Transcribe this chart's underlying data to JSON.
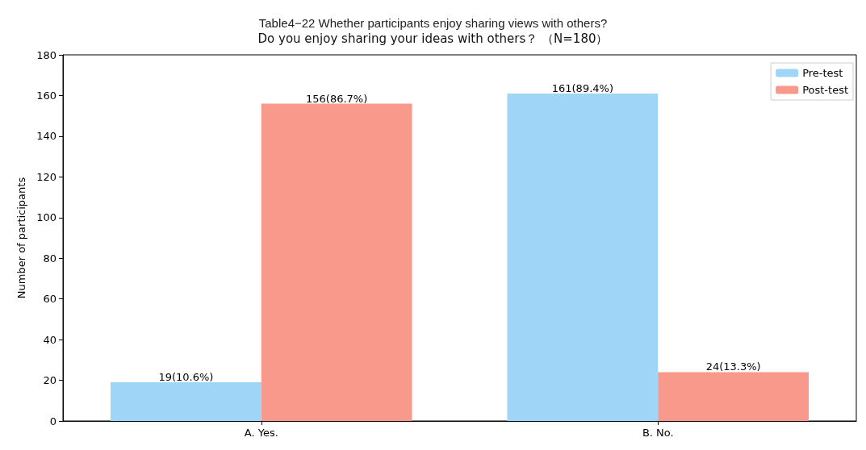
{
  "chart_data": {
    "type": "bar",
    "title": "Table4−22 Whether participants enjoy sharing views with others?",
    "subtitle": "Do you enjoy sharing your ideas with others？ （N=180）",
    "ylabel": "Number of participants",
    "categories": [
      "A. Yes.",
      "B. No."
    ],
    "series": [
      {
        "name": "Pre-test",
        "color": "#9fd6f8",
        "values": [
          19,
          161
        ],
        "value_labels": [
          "19(10.6%)",
          "161(89.4%)"
        ]
      },
      {
        "name": "Post-test",
        "color": "#f8998c",
        "values": [
          156,
          24
        ],
        "value_labels": [
          "156(86.7%)",
          "24(13.3%)"
        ]
      }
    ],
    "ylim": [
      0,
      180
    ],
    "yticks": [
      0,
      20,
      40,
      60,
      80,
      100,
      120,
      140,
      160,
      180
    ],
    "grid": false,
    "legend": "top right"
  }
}
